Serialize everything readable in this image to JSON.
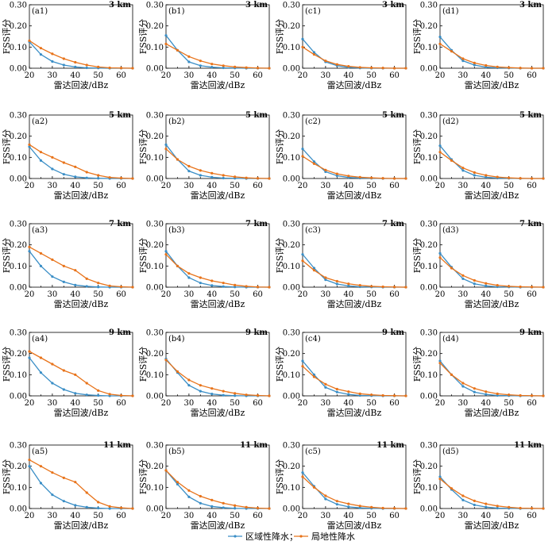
{
  "legend": {
    "items": [
      {
        "label": "区域性降水；",
        "color": "#3a8ec6"
      },
      {
        "label": "局地性降水",
        "color": "#e8731a"
      }
    ]
  },
  "axes_text": {
    "ylabel": "FSS评分",
    "xlabel": "雷达回波/dBz",
    "yticks": [
      "0.00",
      "0.10",
      "0.20",
      "0.30"
    ],
    "xticks": [
      "20",
      "30",
      "40",
      "50",
      "60"
    ]
  },
  "chart_data": {
    "type": "line",
    "xlim": [
      20,
      65
    ],
    "ylim": [
      0,
      0.3
    ],
    "x": [
      20,
      25,
      30,
      35,
      40,
      45,
      50,
      55,
      60,
      65
    ],
    "rows": [
      {
        "resolution": "3 km",
        "panels": [
          {
            "label": "(a1)",
            "series": [
              {
                "values": [
                  0.125,
                  0.065,
                  0.032,
                  0.015,
                  0.006,
                  0.002,
                  0.001,
                  0,
                  0,
                  0
                ]
              },
              {
                "values": [
                  0.13,
                  0.095,
                  0.068,
                  0.045,
                  0.028,
                  0.015,
                  0.006,
                  0.002,
                  0.001,
                  0
                ]
              }
            ]
          },
          {
            "label": "(b1)",
            "series": [
              {
                "values": [
                  0.155,
                  0.085,
                  0.03,
                  0.012,
                  0.005,
                  0.002,
                  0.001,
                  0,
                  0,
                  0
                ]
              },
              {
                "values": [
                  0.115,
                  0.085,
                  0.055,
                  0.035,
                  0.02,
                  0.012,
                  0.006,
                  0.003,
                  0.001,
                  0
                ]
              }
            ]
          },
          {
            "label": "(c1)",
            "series": [
              {
                "values": [
                  0.138,
                  0.075,
                  0.03,
                  0.012,
                  0.004,
                  0.001,
                  0,
                  0,
                  0,
                  0
                ]
              },
              {
                "values": [
                  0.1,
                  0.065,
                  0.035,
                  0.018,
                  0.009,
                  0.004,
                  0.002,
                  0.001,
                  0,
                  0
                ]
              }
            ]
          },
          {
            "label": "(d1)",
            "series": [
              {
                "values": [
                  0.148,
                  0.085,
                  0.035,
                  0.015,
                  0.005,
                  0.002,
                  0.001,
                  0,
                  0,
                  0
                ]
              },
              {
                "values": [
                  0.115,
                  0.08,
                  0.045,
                  0.025,
                  0.013,
                  0.006,
                  0.003,
                  0.001,
                  0,
                  0
                ]
              }
            ]
          }
        ]
      },
      {
        "resolution": "5 km",
        "panels": [
          {
            "label": "(a2)",
            "series": [
              {
                "values": [
                  0.15,
                  0.085,
                  0.045,
                  0.02,
                  0.008,
                  0.003,
                  0.001,
                  0,
                  0,
                  0
                ]
              },
              {
                "values": [
                  0.16,
                  0.125,
                  0.1,
                  0.075,
                  0.055,
                  0.03,
                  0.015,
                  0.005,
                  0.002,
                  0
                ]
              }
            ]
          },
          {
            "label": "(b2)",
            "series": [
              {
                "values": [
                  0.16,
                  0.09,
                  0.035,
                  0.015,
                  0.006,
                  0.002,
                  0.001,
                  0,
                  0,
                  0
                ]
              },
              {
                "values": [
                  0.14,
                  0.09,
                  0.058,
                  0.038,
                  0.025,
                  0.015,
                  0.008,
                  0.003,
                  0.001,
                  0
                ]
              }
            ]
          },
          {
            "label": "(c2)",
            "series": [
              {
                "values": [
                  0.14,
                  0.08,
                  0.032,
                  0.013,
                  0.005,
                  0.002,
                  0.001,
                  0,
                  0,
                  0
                ]
              },
              {
                "values": [
                  0.105,
                  0.07,
                  0.04,
                  0.022,
                  0.012,
                  0.006,
                  0.003,
                  0.001,
                  0,
                  0
                ]
              }
            ]
          },
          {
            "label": "(d2)",
            "series": [
              {
                "values": [
                  0.155,
                  0.09,
                  0.038,
                  0.015,
                  0.006,
                  0.002,
                  0.001,
                  0,
                  0,
                  0
                ]
              },
              {
                "values": [
                  0.125,
                  0.085,
                  0.05,
                  0.028,
                  0.015,
                  0.007,
                  0.003,
                  0.001,
                  0,
                  0
                ]
              }
            ]
          }
        ]
      },
      {
        "resolution": "7 km",
        "panels": [
          {
            "label": "(a3)",
            "series": [
              {
                "values": [
                  0.17,
                  0.1,
                  0.05,
                  0.025,
                  0.01,
                  0.004,
                  0.001,
                  0,
                  0,
                  0
                ]
              },
              {
                "values": [
                  0.19,
                  0.16,
                  0.13,
                  0.1,
                  0.08,
                  0.04,
                  0.02,
                  0.006,
                  0.002,
                  0
                ]
              }
            ]
          },
          {
            "label": "(b3)",
            "series": [
              {
                "values": [
                  0.17,
                  0.1,
                  0.045,
                  0.02,
                  0.008,
                  0.003,
                  0.001,
                  0,
                  0,
                  0
                ]
              },
              {
                "values": [
                  0.155,
                  0.1,
                  0.065,
                  0.045,
                  0.03,
                  0.02,
                  0.01,
                  0.004,
                  0.001,
                  0
                ]
              }
            ]
          },
          {
            "label": "(c3)",
            "series": [
              {
                "values": [
                  0.155,
                  0.09,
                  0.035,
                  0.015,
                  0.006,
                  0.002,
                  0.001,
                  0,
                  0,
                  0
                ]
              },
              {
                "values": [
                  0.125,
                  0.08,
                  0.045,
                  0.028,
                  0.016,
                  0.009,
                  0.004,
                  0.002,
                  0.001,
                  0
                ]
              }
            ]
          },
          {
            "label": "(d3)",
            "series": [
              {
                "values": [
                  0.16,
                  0.095,
                  0.04,
                  0.016,
                  0.006,
                  0.002,
                  0.001,
                  0,
                  0,
                  0
                ]
              },
              {
                "values": [
                  0.14,
                  0.09,
                  0.055,
                  0.032,
                  0.018,
                  0.009,
                  0.004,
                  0.002,
                  0.001,
                  0
                ]
              }
            ]
          }
        ]
      },
      {
        "resolution": "9 km",
        "panels": [
          {
            "label": "(a4)",
            "series": [
              {
                "values": [
                  0.18,
                  0.11,
                  0.06,
                  0.03,
                  0.012,
                  0.005,
                  0.002,
                  0,
                  0,
                  0
                ]
              },
              {
                "values": [
                  0.21,
                  0.18,
                  0.15,
                  0.12,
                  0.1,
                  0.06,
                  0.025,
                  0.008,
                  0.002,
                  0
                ]
              }
            ]
          },
          {
            "label": "(b4)",
            "series": [
              {
                "values": [
                  0.175,
                  0.11,
                  0.05,
                  0.022,
                  0.009,
                  0.003,
                  0.001,
                  0,
                  0,
                  0
                ]
              },
              {
                "values": [
                  0.17,
                  0.115,
                  0.075,
                  0.05,
                  0.035,
                  0.022,
                  0.012,
                  0.005,
                  0.002,
                  0
                ]
              }
            ]
          },
          {
            "label": "(c4)",
            "series": [
              {
                "values": [
                  0.165,
                  0.1,
                  0.04,
                  0.018,
                  0.007,
                  0.002,
                  0.001,
                  0,
                  0,
                  0
                ]
              },
              {
                "values": [
                  0.14,
                  0.09,
                  0.055,
                  0.032,
                  0.02,
                  0.01,
                  0.005,
                  0.002,
                  0.001,
                  0
                ]
              }
            ]
          },
          {
            "label": "(d4)",
            "series": [
              {
                "values": [
                  0.165,
                  0.1,
                  0.045,
                  0.018,
                  0.007,
                  0.002,
                  0.001,
                  0,
                  0,
                  0
                ]
              },
              {
                "values": [
                  0.155,
                  0.1,
                  0.06,
                  0.035,
                  0.02,
                  0.01,
                  0.005,
                  0.002,
                  0.001,
                  0
                ]
              }
            ]
          }
        ]
      },
      {
        "resolution": "11 km",
        "panels": [
          {
            "label": "(a5)",
            "series": [
              {
                "values": [
                  0.2,
                  0.12,
                  0.065,
                  0.035,
                  0.015,
                  0.006,
                  0.002,
                  0,
                  0,
                  0
                ]
              },
              {
                "values": [
                  0.23,
                  0.2,
                  0.17,
                  0.145,
                  0.125,
                  0.075,
                  0.03,
                  0.01,
                  0.003,
                  0
                ]
              }
            ]
          },
          {
            "label": "(b5)",
            "series": [
              {
                "values": [
                  0.18,
                  0.115,
                  0.055,
                  0.025,
                  0.01,
                  0.004,
                  0.001,
                  0,
                  0,
                  0
                ]
              },
              {
                "values": [
                  0.18,
                  0.125,
                  0.085,
                  0.058,
                  0.04,
                  0.025,
                  0.014,
                  0.006,
                  0.002,
                  0
                ]
              }
            ]
          },
          {
            "label": "(c5)",
            "series": [
              {
                "values": [
                  0.17,
                  0.105,
                  0.045,
                  0.02,
                  0.008,
                  0.003,
                  0.001,
                  0,
                  0,
                  0
                ]
              },
              {
                "values": [
                  0.15,
                  0.1,
                  0.06,
                  0.035,
                  0.022,
                  0.012,
                  0.006,
                  0.002,
                  0.001,
                  0
                ]
              }
            ]
          },
          {
            "label": "(d5)",
            "series": [
              {
                "values": [
                  0.15,
                  0.09,
                  0.04,
                  0.017,
                  0.007,
                  0.002,
                  0.001,
                  0,
                  0,
                  0
                ]
              },
              {
                "values": [
                  0.14,
                  0.095,
                  0.06,
                  0.036,
                  0.022,
                  0.012,
                  0.006,
                  0.002,
                  0.001,
                  0
                ]
              }
            ]
          }
        ]
      }
    ]
  }
}
